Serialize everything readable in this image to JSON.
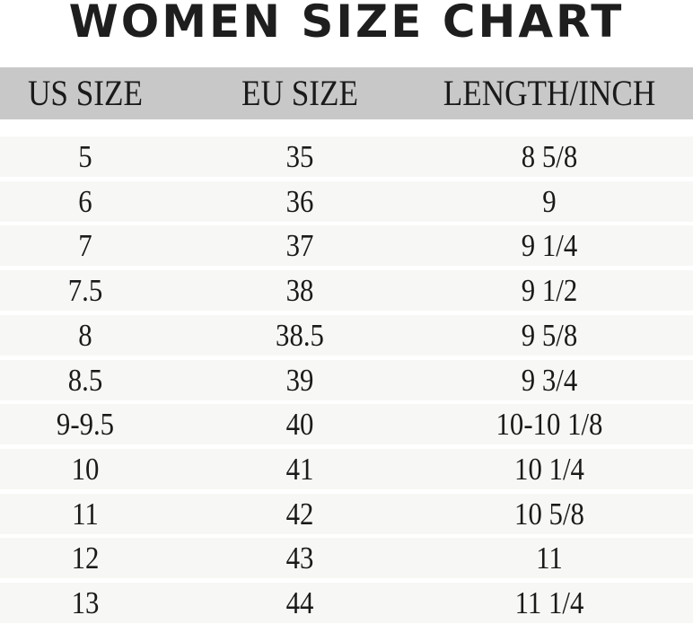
{
  "title": "WOMEN SIZE CHART",
  "columns": [
    "US SIZE",
    "EU SIZE",
    "LENGTH/INCH"
  ],
  "rows": [
    [
      "5",
      "35",
      "8 5/8"
    ],
    [
      "6",
      "36",
      "9"
    ],
    [
      "7",
      "37",
      "9 1/4"
    ],
    [
      "7.5",
      "38",
      "9 1/2"
    ],
    [
      "8",
      "38.5",
      "9 5/8"
    ],
    [
      "8.5",
      "39",
      "9 3/4"
    ],
    [
      "9-9.5",
      "40",
      "10-10 1/8"
    ],
    [
      "10",
      "41",
      "10 1/4"
    ],
    [
      "11",
      "42",
      "10 5/8"
    ],
    [
      "12",
      "43",
      "11"
    ],
    [
      "13",
      "44",
      "11 1/4"
    ]
  ],
  "colors": {
    "header_bg": "#c8c8c8",
    "row_bg": "#f7f7f5",
    "text": "#1a1a1a"
  }
}
